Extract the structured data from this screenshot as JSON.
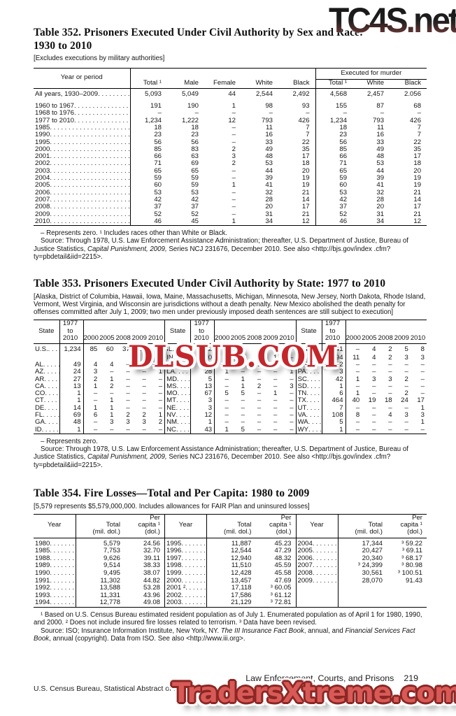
{
  "watermarks": {
    "top_right": "TC4S.net",
    "middle": "DLSUB.COM",
    "bottom": "TradersXtreme.com",
    "red_color": "#c3262b",
    "bottom_red_color": "#d85a57"
  },
  "table352": {
    "title": "Table 352. Prisoners Executed Under Civil Authority by Sex and Race:\n1930 to 2010",
    "note": "[Excludes executions by military authorities]",
    "header": {
      "year_col": "Year or period",
      "cols": [
        "Total ¹",
        "Male",
        "Female",
        "White",
        "Black"
      ],
      "group": "Executed for murder",
      "group_cols": [
        "Total ¹",
        "White",
        "Black"
      ]
    },
    "rows": [
      {
        "label": "All years, 1930–2009",
        "bold": true,
        "vals": [
          "5,093",
          "5,049",
          "44",
          "2,544",
          "2,492",
          "4,568",
          "2,457",
          "2.056"
        ]
      },
      {
        "spacer": true
      },
      {
        "label": "1960 to 1967",
        "vals": [
          "191",
          "190",
          "1",
          "98",
          "93",
          "155",
          "87",
          "68"
        ]
      },
      {
        "label": "1968 to 1976",
        "vals": [
          "–",
          "–",
          "–",
          "–",
          "–",
          "–",
          "–",
          "–"
        ]
      },
      {
        "label": "1977 to 2010",
        "vals": [
          "1,234",
          "1,222",
          "12",
          "793",
          "426",
          "1,234",
          "793",
          "426"
        ]
      },
      {
        "label": "1985",
        "vals": [
          "18",
          "18",
          "–",
          "11",
          "7",
          "18",
          "11",
          "7"
        ]
      },
      {
        "label": "1990",
        "vals": [
          "23",
          "23",
          "–",
          "16",
          "7",
          "23",
          "16",
          "7"
        ]
      },
      {
        "label": "1995",
        "vals": [
          "56",
          "56",
          "–",
          "33",
          "22",
          "56",
          "33",
          "22"
        ]
      },
      {
        "label": "2000",
        "vals": [
          "85",
          "83",
          "2",
          "49",
          "35",
          "85",
          "49",
          "35"
        ]
      },
      {
        "label": "2001",
        "vals": [
          "66",
          "63",
          "3",
          "48",
          "17",
          "66",
          "48",
          "17"
        ]
      },
      {
        "label": "2002",
        "vals": [
          "71",
          "69",
          "2",
          "53",
          "18",
          "71",
          "53",
          "18"
        ]
      },
      {
        "label": "2003",
        "vals": [
          "65",
          "65",
          "–",
          "44",
          "20",
          "65",
          "44",
          "20"
        ]
      },
      {
        "label": "2004",
        "vals": [
          "59",
          "59",
          "–",
          "39",
          "19",
          "59",
          "39",
          "19"
        ]
      },
      {
        "label": "2005",
        "vals": [
          "60",
          "59",
          "1",
          "41",
          "19",
          "60",
          "41",
          "19"
        ]
      },
      {
        "label": "2006",
        "vals": [
          "53",
          "53",
          "–",
          "32",
          "21",
          "53",
          "32",
          "21"
        ]
      },
      {
        "label": "2007",
        "vals": [
          "42",
          "42",
          "–",
          "28",
          "14",
          "42",
          "28",
          "14"
        ]
      },
      {
        "label": "2008",
        "vals": [
          "37",
          "37",
          "–",
          "20",
          "17",
          "37",
          "20",
          "17"
        ]
      },
      {
        "label": "2009",
        "vals": [
          "52",
          "52",
          "–",
          "31",
          "21",
          "52",
          "31",
          "21"
        ]
      },
      {
        "label": "2010",
        "vals": [
          "46",
          "45",
          "1",
          "34",
          "12",
          "46",
          "34",
          "12"
        ]
      }
    ],
    "footnote": "– Represents zero. ¹ Includes races other than White or Black.",
    "source": [
      {
        "text": "Source: Through 1978, U.S. Law Enforcement Assistance Administration; thereafter, U.S. Department of Justice, Bureau of Justice Statistics, "
      },
      {
        "text": "Capital Punishment, 2009,",
        "italic": true
      },
      {
        "text": " Series NCJ 231676, December 2010. See also <http://bjs.gov/index .cfm?ty=pbdetail&iid=2215>."
      }
    ]
  },
  "table353": {
    "title": "Table 353. Prisoners Executed Under Civil Authority by State: 1977 to 2010",
    "note": "[Alaska, District of Columbia, Hawaii, Iowa, Maine, Massachusetts, Michigan, Minnesota, New Jersey, North Dakota, Rhode Island, Vermont, West Virginia, and Wisconsin are jurisdictions without a death penalty. New Mexico abolished the death penalty for offenses committed after July 1, 2009; two men under previously imposed death sentences are still subject to execution]",
    "header": {
      "state": "State",
      "period": "1977\nto\n2010",
      "years": [
        "2000",
        "2005",
        "2008",
        "2009",
        "2010"
      ]
    },
    "panels": [
      [
        {
          "state": "U.S.",
          "bold": true,
          "vals": [
            "1,234",
            "85",
            "60",
            "37",
            "52",
            "46"
          ]
        },
        {
          "spacer": true
        },
        {
          "state": "AL",
          "vals": [
            "49",
            "4",
            "4",
            "–",
            "6",
            "5"
          ]
        },
        {
          "state": "AZ",
          "vals": [
            "24",
            "3",
            "–",
            "–",
            "–",
            "1"
          ]
        },
        {
          "state": "AR",
          "vals": [
            "27",
            "2",
            "1",
            "–",
            "–",
            "–"
          ]
        },
        {
          "state": "CA",
          "vals": [
            "13",
            "1",
            "2",
            "–",
            "–",
            "–"
          ]
        },
        {
          "state": "CO",
          "vals": [
            "1",
            "–",
            "–",
            "–",
            "–",
            "–"
          ]
        },
        {
          "state": "CT",
          "vals": [
            "1",
            "–",
            "1",
            "–",
            "–",
            "–"
          ]
        },
        {
          "state": "DE",
          "vals": [
            "14",
            "1",
            "1",
            "–",
            "–",
            "–"
          ]
        },
        {
          "state": "FL",
          "vals": [
            "69",
            "6",
            "1",
            "2",
            "2",
            "1"
          ]
        },
        {
          "state": "GA",
          "vals": [
            "48",
            "–",
            "3",
            "3",
            "3",
            "2"
          ]
        },
        {
          "state": "ID",
          "vals": [
            "1",
            "–",
            "–",
            "–",
            "–",
            "–"
          ]
        }
      ],
      [
        {
          "state": "IL",
          "vals": [
            "12",
            "–",
            "–",
            "–",
            "–",
            "–"
          ]
        },
        {
          "state": "IN",
          "vals": [
            "20",
            "–",
            "5",
            "–",
            "1",
            "–"
          ]
        },
        {
          "state": "KY",
          "vals": [
            "3",
            "–",
            "–",
            "1",
            "–",
            "–"
          ]
        },
        {
          "state": "LA",
          "vals": [
            "28",
            "1",
            "–",
            "–",
            "–",
            "1"
          ]
        },
        {
          "state": "MD",
          "vals": [
            "5",
            "–",
            "1",
            "–",
            "–",
            "–"
          ]
        },
        {
          "state": "MS",
          "vals": [
            "13",
            "–",
            "1",
            "2",
            "–",
            "3"
          ]
        },
        {
          "state": "MO",
          "vals": [
            "67",
            "5",
            "5",
            "–",
            "1",
            "–"
          ]
        },
        {
          "state": "MT",
          "vals": [
            "3",
            "–",
            "–",
            "–",
            "–",
            "–"
          ]
        },
        {
          "state": "NE",
          "vals": [
            "3",
            "–",
            "–",
            "–",
            "–",
            "–"
          ]
        },
        {
          "state": "NV",
          "vals": [
            "12",
            "–",
            "–",
            "–",
            "–",
            "–"
          ]
        },
        {
          "state": "NM",
          "vals": [
            "1",
            "–",
            "–",
            "–",
            "–",
            "–"
          ]
        },
        {
          "state": "NC",
          "vals": [
            "43",
            "1",
            "5",
            "–",
            "–",
            "–"
          ]
        }
      ],
      [
        {
          "state": "OH",
          "vals": [
            "41",
            "–",
            "4",
            "2",
            "5",
            "8"
          ]
        },
        {
          "state": "OK",
          "vals": [
            "94",
            "11",
            "4",
            "2",
            "3",
            "3"
          ]
        },
        {
          "state": "OR",
          "vals": [
            "2",
            "–",
            "–",
            "–",
            "–",
            "–"
          ]
        },
        {
          "state": "PA",
          "vals": [
            "3",
            "–",
            "–",
            "–",
            "–",
            "–"
          ]
        },
        {
          "state": "SC",
          "vals": [
            "42",
            "1",
            "3",
            "3",
            "2",
            "–"
          ]
        },
        {
          "state": "SD",
          "vals": [
            "1",
            "–",
            "–",
            "–",
            "–",
            "–"
          ]
        },
        {
          "state": "TN",
          "vals": [
            "6",
            "1",
            "–",
            "–",
            "2",
            "–"
          ]
        },
        {
          "state": "TX",
          "vals": [
            "464",
            "40",
            "19",
            "18",
            "24",
            "17"
          ]
        },
        {
          "state": "UT",
          "vals": [
            "7",
            "–",
            "–",
            "–",
            "–",
            "1"
          ]
        },
        {
          "state": "VA",
          "vals": [
            "108",
            "8",
            "–",
            "4",
            "3",
            "3"
          ]
        },
        {
          "state": "WA",
          "vals": [
            "5",
            "–",
            "–",
            "–",
            "–",
            "1"
          ]
        },
        {
          "state": "WY",
          "vals": [
            "1",
            "–",
            "–",
            "–",
            "–",
            "–"
          ]
        }
      ]
    ],
    "footnote": "– Represents zero.",
    "source": [
      {
        "text": "Source: Through 1978, U.S. Law Enforcement Assistance Administration; thereafter, U.S. Department of Justice, Bureau of Justice Statistics, "
      },
      {
        "text": "Capital Punishment, 2009,",
        "italic": true
      },
      {
        "text": " Series NCJ 231676, December 2010. See also <http://bjs.gov/index .cfm?ty=pbdetail&iid=2215>."
      }
    ]
  },
  "table354": {
    "title": "Table 354. Fire Losses—Total and Per Capita: 1980 to 2009",
    "note": "[5,579 represents $5,579,000,000. Includes allowances for FAIR Plan and uninsured losses]",
    "header": {
      "year": "Year",
      "total": "Total\n(mil. dol.)",
      "percap": "Per\ncapita ¹\n(dol.)"
    },
    "panels": [
      [
        {
          "year": "1980",
          "total": "5,579",
          "percap": "24.56"
        },
        {
          "year": "1985",
          "total": "7,753",
          "percap": "32.70"
        },
        {
          "year": "1988",
          "total": "9,626",
          "percap": "39.11"
        },
        {
          "year": "1989",
          "total": "9,514",
          "percap": "38.33"
        },
        {
          "year": "1990",
          "total": "9,495",
          "percap": "38.07"
        },
        {
          "year": "1991",
          "total": "11,302",
          "percap": "44.82"
        },
        {
          "year": "1992",
          "total": "13,588",
          "percap": "53.28"
        },
        {
          "year": "1993",
          "total": "11,331",
          "percap": "43.96"
        },
        {
          "year": "1994",
          "total": "12,778",
          "percap": "49.08"
        }
      ],
      [
        {
          "year": "1995",
          "total": "11,887",
          "percap": "45.23"
        },
        {
          "year": "1996",
          "total": "12,544",
          "percap": "47.29"
        },
        {
          "year": "1997",
          "total": "12,940",
          "percap": "48.32"
        },
        {
          "year": "1998",
          "total": "11,510",
          "percap": "45.59"
        },
        {
          "year": "1999",
          "total": "12,428",
          "percap": "45.58"
        },
        {
          "year": "2000",
          "total": "13,457",
          "percap": "47.69"
        },
        {
          "year": "2001 ²",
          "total": "17,118",
          "percap": "³ 60.05"
        },
        {
          "year": "2002",
          "total": "17,586",
          "percap": "³ 61.12"
        },
        {
          "year": "2003",
          "total": "21,129",
          "percap": "³ 72.81"
        }
      ],
      [
        {
          "year": "2004",
          "total": "17,344",
          "percap": "³ 59.22"
        },
        {
          "year": "2005",
          "total": "20,427",
          "percap": "³ 69.11"
        },
        {
          "year": "2006",
          "total": "20,340",
          "percap": "³ 68.17"
        },
        {
          "year": "2007",
          "total": "³ 24,399",
          "percap": "³ 80.98"
        },
        {
          "year": "2008",
          "total": "30,561",
          "percap": "³ 100.51"
        },
        {
          "year": "2009",
          "total": "28,070",
          "percap": "91.43"
        },
        null,
        null,
        null
      ]
    ],
    "footnote": "¹ Based on U.S. Census Bureau estimated resident population as of July 1. Enumerated population as of April 1 for 1980, 1990, and 2000. ² Does not include insured fire losses related to terrorism. ³ Data have been revised.",
    "source": [
      {
        "text": "Source: ISO; Insurance Information Institute, New York, NY. "
      },
      {
        "text": "The III Insurance Fact Book",
        "italic": true
      },
      {
        "text": ", annual, and "
      },
      {
        "text": "Financial Services Fact Book",
        "italic": true
      },
      {
        "text": ", annual (copyright). Data from ISO. See also <http://www.iii.org>."
      }
    ]
  },
  "footer": {
    "section": "Law Enforcement, Courts, and Prisons",
    "page": "219",
    "imprint": "U.S. Census Bureau, Statistical Abstract of the United States: 2012"
  }
}
